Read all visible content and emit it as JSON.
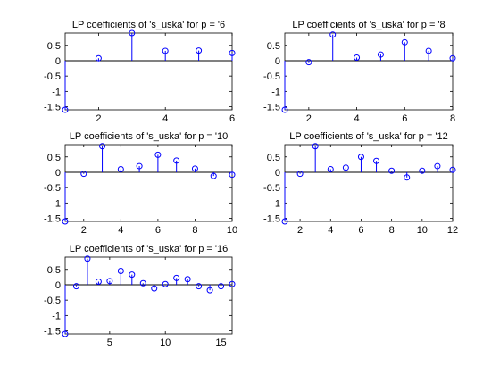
{
  "colors": {
    "stem": "#0000ff",
    "baseline": "#000000",
    "background": "#ffffff"
  },
  "chart_data": [
    {
      "type": "stem",
      "title": "LP coefficients of 's_uska' for p = '6",
      "xlim": [
        1,
        6
      ],
      "ylim": [
        -1.6,
        0.9
      ],
      "xticks": [
        2,
        4,
        6
      ],
      "yticks": [
        0.5,
        0,
        -0.5,
        -1,
        -1.5
      ],
      "x": [
        1,
        2,
        3,
        4,
        5,
        6
      ],
      "values": [
        -1.6,
        0.08,
        0.9,
        0.32,
        0.33,
        0.25
      ]
    },
    {
      "type": "stem",
      "title": "LP coefficients of 's_uska' for p = '8",
      "xlim": [
        1,
        8
      ],
      "ylim": [
        -1.6,
        0.9
      ],
      "xticks": [
        2,
        4,
        6,
        8
      ],
      "yticks": [
        0.5,
        0,
        -0.5,
        -1,
        -1.5
      ],
      "x": [
        1,
        2,
        3,
        4,
        5,
        6,
        7,
        8
      ],
      "values": [
        -1.6,
        -0.05,
        0.85,
        0.1,
        0.2,
        0.6,
        0.32,
        0.08
      ]
    },
    {
      "type": "stem",
      "title": "LP coefficients of 's_uska' for p = '10",
      "xlim": [
        1,
        10
      ],
      "ylim": [
        -1.6,
        0.9
      ],
      "xticks": [
        2,
        4,
        6,
        8,
        10
      ],
      "yticks": [
        0.5,
        0,
        -0.5,
        -1,
        -1.5
      ],
      "x": [
        1,
        2,
        3,
        4,
        5,
        6,
        7,
        8,
        9,
        10
      ],
      "values": [
        -1.6,
        -0.05,
        0.85,
        0.1,
        0.2,
        0.57,
        0.38,
        0.12,
        -0.12,
        -0.08
      ]
    },
    {
      "type": "stem",
      "title": "LP coefficients of 's_uska' for p = '12",
      "xlim": [
        1,
        12
      ],
      "ylim": [
        -1.6,
        0.9
      ],
      "xticks": [
        2,
        4,
        6,
        8,
        10,
        12
      ],
      "yticks": [
        0.5,
        0,
        -0.5,
        -1,
        -1.5
      ],
      "x": [
        1,
        2,
        3,
        4,
        5,
        6,
        7,
        8,
        9,
        10,
        11,
        12
      ],
      "values": [
        -1.6,
        -0.05,
        0.85,
        0.1,
        0.15,
        0.5,
        0.37,
        0.05,
        -0.17,
        0.05,
        0.2,
        0.08
      ]
    },
    {
      "type": "stem",
      "title": "LP coefficients of 's_uska' for p = '16",
      "xlim": [
        1,
        16
      ],
      "ylim": [
        -1.6,
        0.9
      ],
      "xticks": [
        5,
        10,
        15
      ],
      "yticks": [
        0.5,
        0,
        -0.5,
        -1,
        -1.5
      ],
      "x": [
        1,
        2,
        3,
        4,
        5,
        6,
        7,
        8,
        9,
        10,
        11,
        12,
        13,
        14,
        15,
        16
      ],
      "values": [
        -1.6,
        -0.05,
        0.85,
        0.1,
        0.12,
        0.45,
        0.33,
        0.05,
        -0.12,
        0.02,
        0.22,
        0.18,
        -0.05,
        -0.18,
        -0.05,
        0.02
      ]
    }
  ]
}
